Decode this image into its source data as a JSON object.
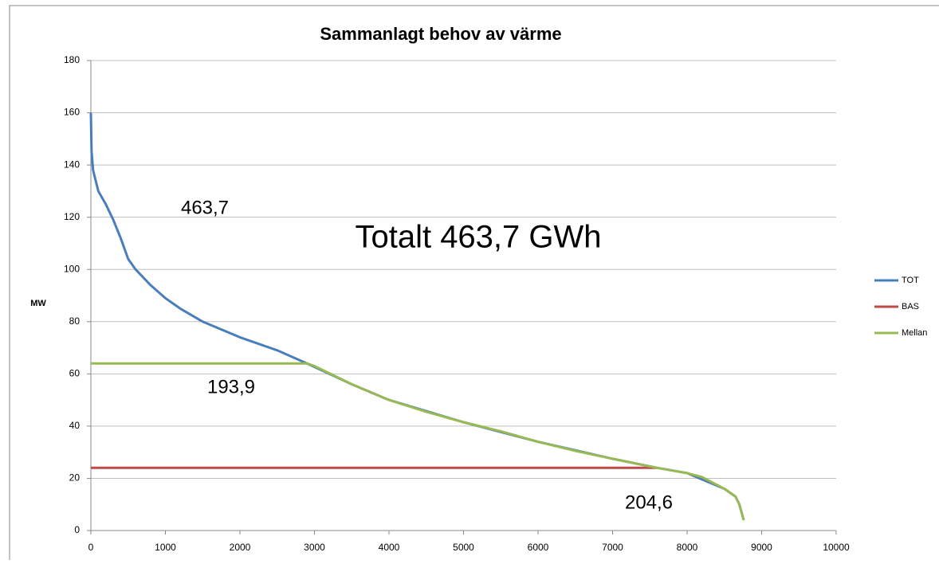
{
  "chart_data": {
    "type": "line",
    "title": "Sammanlagt behov av värme",
    "y_label": "MW",
    "xlim": [
      0,
      10000
    ],
    "xticks": [
      0,
      1000,
      2000,
      3000,
      4000,
      5000,
      6000,
      7000,
      8000,
      9000,
      10000
    ],
    "ylim": [
      0,
      180
    ],
    "yticks": [
      0,
      20,
      40,
      60,
      80,
      100,
      120,
      140,
      160,
      180
    ],
    "grid": true,
    "legend": "right",
    "annotations": [
      "463,7",
      "Totalt 463,7 GWh",
      "193,9",
      "204,6"
    ],
    "series": [
      {
        "name": "TOT",
        "color": "#4a7ebb",
        "x": [
          0,
          10,
          30,
          100,
          200,
          300,
          400,
          500,
          600,
          800,
          1000,
          1200,
          1500,
          2000,
          2500,
          2900,
          3500,
          4000,
          5000,
          6000,
          7000,
          7600,
          8000,
          8500,
          8650,
          8700,
          8750,
          8760
        ],
        "values": [
          160,
          145,
          138,
          130,
          125,
          119,
          112,
          104,
          100,
          94,
          89,
          85,
          80,
          74,
          69,
          64,
          56,
          50,
          41.5,
          34,
          27.5,
          24,
          22,
          16,
          13,
          10,
          5,
          4
        ]
      },
      {
        "name": "BAS",
        "color": "#be4b48",
        "x": [
          0,
          7600
        ],
        "values": [
          24,
          24
        ]
      },
      {
        "name": "Mellan",
        "color": "#98b954",
        "x": [
          0,
          2900,
          3000,
          3500,
          4000,
          4500,
          5000,
          5500,
          6000,
          6500,
          7000,
          7600,
          8000,
          8200,
          8500,
          8650,
          8700,
          8750,
          8760
        ],
        "values": [
          64,
          64,
          63,
          56,
          50,
          45.5,
          41.5,
          38,
          34,
          30.5,
          27.5,
          24,
          22,
          20.5,
          16,
          13,
          10,
          5,
          4
        ]
      }
    ]
  }
}
